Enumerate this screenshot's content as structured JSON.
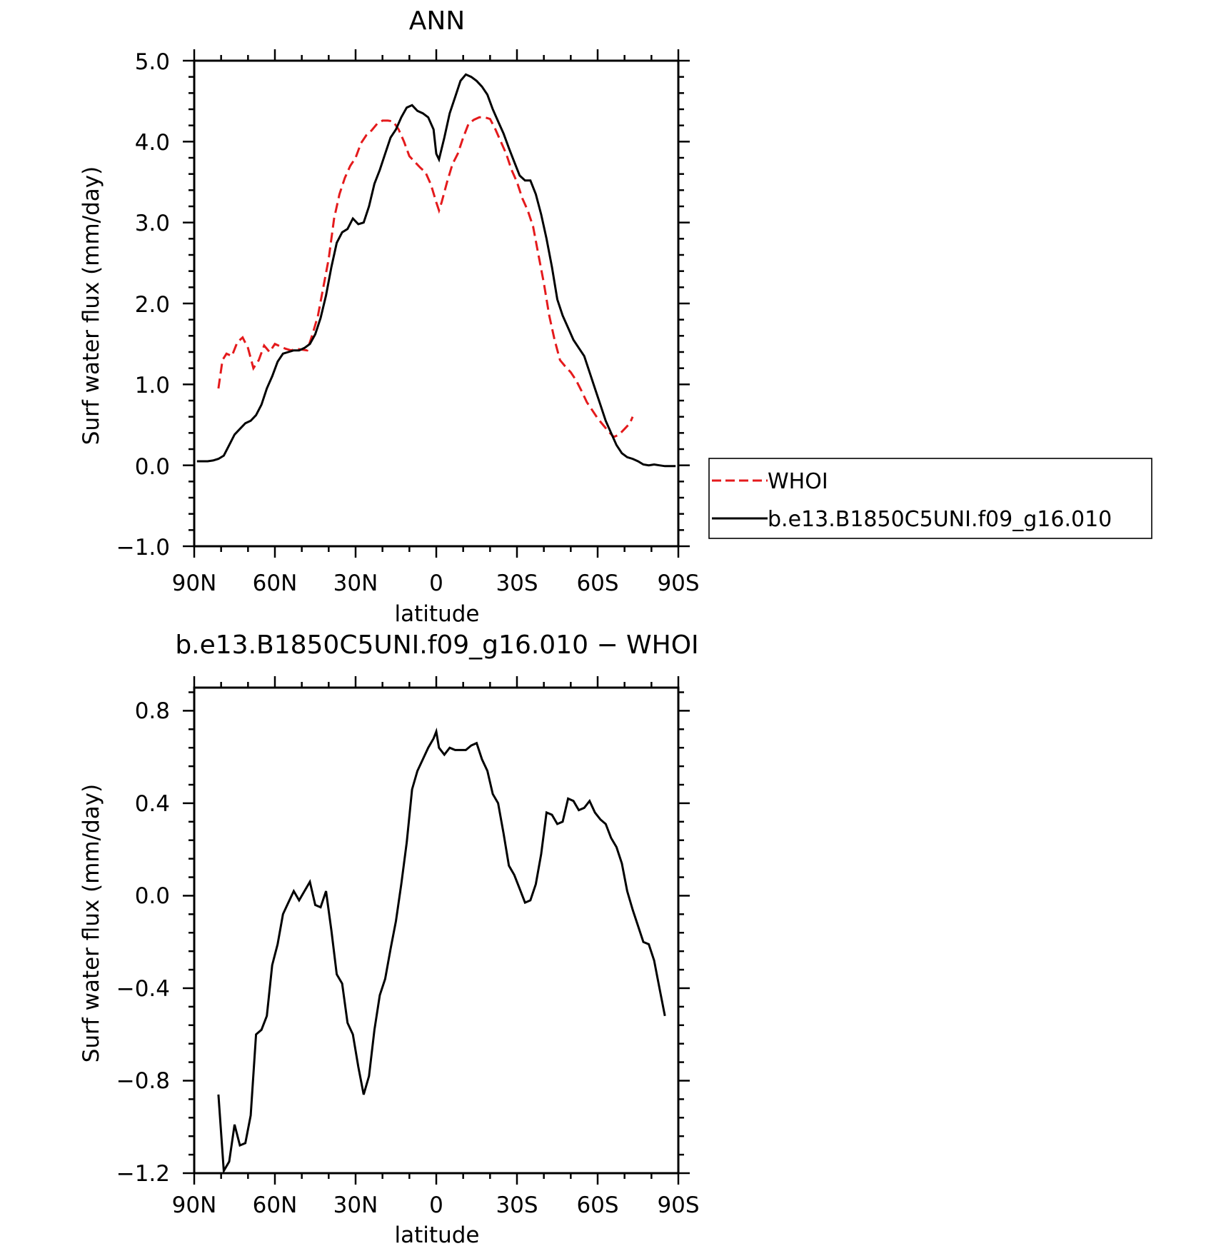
{
  "chart_data": [
    {
      "type": "line",
      "title": "ANN",
      "xlabel": "latitude",
      "ylabel": "Surf water flux (mm/day)",
      "xlim": [
        90,
        -90
      ],
      "ylim": [
        -1.0,
        5.0
      ],
      "x_ticks": [
        90,
        60,
        30,
        0,
        -30,
        -60,
        -90
      ],
      "x_tick_labels": [
        "90N",
        "60N",
        "30N",
        "0",
        "30S",
        "60S",
        "90S"
      ],
      "y_ticks": [
        -1.0,
        0.0,
        1.0,
        2.0,
        3.0,
        4.0,
        5.0
      ],
      "y_tick_labels": [
        "−1.0",
        "0.0",
        "1.0",
        "2.0",
        "3.0",
        "4.0",
        "5.0"
      ],
      "grid": false,
      "legend_position": "right",
      "series": [
        {
          "name": "WHOI",
          "color": "#e41a1c",
          "style": "dashed",
          "points": [
            [
              81,
              0.95
            ],
            [
              79.5,
              1.3
            ],
            [
              78,
              1.38
            ],
            [
              76,
              1.35
            ],
            [
              74,
              1.52
            ],
            [
              72,
              1.58
            ],
            [
              70,
              1.45
            ],
            [
              68,
              1.2
            ],
            [
              66,
              1.3
            ],
            [
              64,
              1.48
            ],
            [
              62,
              1.4
            ],
            [
              60,
              1.5
            ],
            [
              58,
              1.47
            ],
            [
              56,
              1.44
            ],
            [
              54,
              1.42
            ],
            [
              52,
              1.44
            ],
            [
              50,
              1.43
            ],
            [
              48,
              1.42
            ],
            [
              46,
              1.62
            ],
            [
              44,
              1.85
            ],
            [
              42,
              2.2
            ],
            [
              40,
              2.55
            ],
            [
              38,
              3.05
            ],
            [
              36,
              3.35
            ],
            [
              34,
              3.55
            ],
            [
              32,
              3.7
            ],
            [
              30,
              3.8
            ],
            [
              28,
              3.98
            ],
            [
              26,
              4.08
            ],
            [
              24,
              4.14
            ],
            [
              22,
              4.22
            ],
            [
              20,
              4.26
            ],
            [
              18,
              4.26
            ],
            [
              16,
              4.25
            ],
            [
              14,
              4.15
            ],
            [
              12,
              4.0
            ],
            [
              10,
              3.82
            ],
            [
              8,
              3.75
            ],
            [
              6,
              3.68
            ],
            [
              4,
              3.62
            ],
            [
              2,
              3.47
            ],
            [
              0,
              3.25
            ],
            [
              -1,
              3.15
            ],
            [
              -2,
              3.25
            ],
            [
              -4,
              3.5
            ],
            [
              -6,
              3.72
            ],
            [
              -8,
              3.85
            ],
            [
              -10,
              4.05
            ],
            [
              -12,
              4.22
            ],
            [
              -14,
              4.27
            ],
            [
              -16,
              4.3
            ],
            [
              -18,
              4.3
            ],
            [
              -20,
              4.28
            ],
            [
              -22,
              4.15
            ],
            [
              -24,
              4.0
            ],
            [
              -26,
              3.85
            ],
            [
              -28,
              3.65
            ],
            [
              -30,
              3.5
            ],
            [
              -32,
              3.3
            ],
            [
              -34,
              3.15
            ],
            [
              -36,
              2.95
            ],
            [
              -38,
              2.6
            ],
            [
              -40,
              2.25
            ],
            [
              -42,
              1.85
            ],
            [
              -44,
              1.55
            ],
            [
              -46,
              1.3
            ],
            [
              -48,
              1.22
            ],
            [
              -50,
              1.15
            ],
            [
              -52,
              1.05
            ],
            [
              -54,
              0.92
            ],
            [
              -56,
              0.78
            ],
            [
              -58,
              0.68
            ],
            [
              -60,
              0.58
            ],
            [
              -62,
              0.5
            ],
            [
              -64,
              0.42
            ],
            [
              -66,
              0.35
            ],
            [
              -68,
              0.38
            ],
            [
              -70,
              0.45
            ],
            [
              -72,
              0.52
            ],
            [
              -73,
              0.6
            ]
          ]
        },
        {
          "name": "b.e13.B1850C5UNI.f09_g16.010",
          "color": "#000000",
          "style": "solid",
          "points": [
            [
              89,
              0.05
            ],
            [
              87,
              0.05
            ],
            [
              85,
              0.05
            ],
            [
              83,
              0.06
            ],
            [
              81,
              0.08
            ],
            [
              79,
              0.12
            ],
            [
              77,
              0.25
            ],
            [
              75,
              0.38
            ],
            [
              73,
              0.45
            ],
            [
              71,
              0.52
            ],
            [
              69,
              0.55
            ],
            [
              67,
              0.62
            ],
            [
              65,
              0.75
            ],
            [
              63,
              0.95
            ],
            [
              61,
              1.1
            ],
            [
              59,
              1.28
            ],
            [
              57,
              1.38
            ],
            [
              55,
              1.4
            ],
            [
              53,
              1.42
            ],
            [
              51,
              1.42
            ],
            [
              49,
              1.45
            ],
            [
              47,
              1.5
            ],
            [
              45,
              1.62
            ],
            [
              43,
              1.82
            ],
            [
              41,
              2.1
            ],
            [
              39,
              2.45
            ],
            [
              37,
              2.75
            ],
            [
              35,
              2.88
            ],
            [
              33,
              2.92
            ],
            [
              31,
              3.05
            ],
            [
              29,
              2.98
            ],
            [
              27,
              3.0
            ],
            [
              25,
              3.2
            ],
            [
              23,
              3.48
            ],
            [
              21,
              3.65
            ],
            [
              19,
              3.85
            ],
            [
              17,
              4.05
            ],
            [
              15,
              4.15
            ],
            [
              13,
              4.3
            ],
            [
              11,
              4.42
            ],
            [
              9,
              4.45
            ],
            [
              7,
              4.38
            ],
            [
              5,
              4.35
            ],
            [
              3,
              4.3
            ],
            [
              1,
              4.15
            ],
            [
              0,
              3.85
            ],
            [
              -1,
              3.78
            ],
            [
              -3,
              4.05
            ],
            [
              -5,
              4.35
            ],
            [
              -7,
              4.55
            ],
            [
              -9,
              4.75
            ],
            [
              -11,
              4.83
            ],
            [
              -13,
              4.8
            ],
            [
              -15,
              4.75
            ],
            [
              -17,
              4.68
            ],
            [
              -19,
              4.58
            ],
            [
              -21,
              4.4
            ],
            [
              -23,
              4.25
            ],
            [
              -25,
              4.1
            ],
            [
              -27,
              3.92
            ],
            [
              -29,
              3.75
            ],
            [
              -31,
              3.58
            ],
            [
              -33,
              3.52
            ],
            [
              -35,
              3.52
            ],
            [
              -37,
              3.35
            ],
            [
              -39,
              3.1
            ],
            [
              -41,
              2.8
            ],
            [
              -43,
              2.45
            ],
            [
              -45,
              2.05
            ],
            [
              -47,
              1.85
            ],
            [
              -49,
              1.7
            ],
            [
              -51,
              1.55
            ],
            [
              -53,
              1.45
            ],
            [
              -55,
              1.35
            ],
            [
              -57,
              1.15
            ],
            [
              -59,
              0.95
            ],
            [
              -61,
              0.75
            ],
            [
              -63,
              0.55
            ],
            [
              -65,
              0.4
            ],
            [
              -67,
              0.25
            ],
            [
              -69,
              0.15
            ],
            [
              -71,
              0.1
            ],
            [
              -73,
              0.08
            ],
            [
              -75,
              0.05
            ],
            [
              -77,
              0.01
            ],
            [
              -79,
              0.0
            ],
            [
              -81,
              0.01
            ],
            [
              -83,
              0.0
            ],
            [
              -85,
              -0.01
            ],
            [
              -87,
              -0.01
            ],
            [
              -89,
              -0.01
            ]
          ]
        }
      ]
    },
    {
      "type": "line",
      "title": "b.e13.B1850C5UNI.f09_g16.010 − WHOI",
      "xlabel": "latitude",
      "ylabel": "Surf water flux (mm/day)",
      "xlim": [
        90,
        -90
      ],
      "ylim": [
        -1.2,
        0.9
      ],
      "x_ticks": [
        90,
        60,
        30,
        0,
        -30,
        -60,
        -90
      ],
      "x_tick_labels": [
        "90N",
        "60N",
        "30N",
        "0",
        "30S",
        "60S",
        "90S"
      ],
      "y_ticks": [
        -1.2,
        -0.8,
        -0.4,
        0.0,
        0.4,
        0.8
      ],
      "y_tick_labels": [
        "−1.2",
        "−0.8",
        "−0.4",
        "0.0",
        "0.4",
        "0.8"
      ],
      "grid": false,
      "series": [
        {
          "color": "#000000",
          "style": "solid",
          "points": [
            [
              81,
              -0.86
            ],
            [
              79,
              -1.19
            ],
            [
              77,
              -1.15
            ],
            [
              75,
              -0.99
            ],
            [
              73,
              -1.08
            ],
            [
              71,
              -1.07
            ],
            [
              69,
              -0.95
            ],
            [
              67,
              -0.6
            ],
            [
              65,
              -0.58
            ],
            [
              63,
              -0.52
            ],
            [
              61,
              -0.3
            ],
            [
              59,
              -0.21
            ],
            [
              57,
              -0.08
            ],
            [
              55,
              -0.03
            ],
            [
              53,
              0.02
            ],
            [
              51,
              -0.02
            ],
            [
              49,
              0.02
            ],
            [
              47,
              0.06
            ],
            [
              45,
              -0.04
            ],
            [
              43,
              -0.05
            ],
            [
              41,
              0.02
            ],
            [
              39,
              -0.15
            ],
            [
              37,
              -0.34
            ],
            [
              35,
              -0.38
            ],
            [
              33,
              -0.55
            ],
            [
              31,
              -0.6
            ],
            [
              29,
              -0.74
            ],
            [
              27,
              -0.86
            ],
            [
              25,
              -0.78
            ],
            [
              23,
              -0.58
            ],
            [
              21,
              -0.43
            ],
            [
              19,
              -0.36
            ],
            [
              17,
              -0.23
            ],
            [
              15,
              -0.11
            ],
            [
              13,
              0.05
            ],
            [
              11,
              0.23
            ],
            [
              9,
              0.46
            ],
            [
              7,
              0.54
            ],
            [
              5,
              0.59
            ],
            [
              3,
              0.64
            ],
            [
              1,
              0.68
            ],
            [
              0,
              0.71
            ],
            [
              -1,
              0.64
            ],
            [
              -3,
              0.61
            ],
            [
              -5,
              0.64
            ],
            [
              -7,
              0.63
            ],
            [
              -9,
              0.63
            ],
            [
              -11,
              0.63
            ],
            [
              -13,
              0.65
            ],
            [
              -15,
              0.66
            ],
            [
              -17,
              0.59
            ],
            [
              -19,
              0.54
            ],
            [
              -21,
              0.44
            ],
            [
              -23,
              0.4
            ],
            [
              -25,
              0.27
            ],
            [
              -27,
              0.13
            ],
            [
              -29,
              0.09
            ],
            [
              -31,
              0.03
            ],
            [
              -33,
              -0.03
            ],
            [
              -35,
              -0.02
            ],
            [
              -37,
              0.05
            ],
            [
              -39,
              0.18
            ],
            [
              -41,
              0.36
            ],
            [
              -43,
              0.35
            ],
            [
              -45,
              0.31
            ],
            [
              -47,
              0.32
            ],
            [
              -49,
              0.42
            ],
            [
              -51,
              0.41
            ],
            [
              -53,
              0.37
            ],
            [
              -55,
              0.38
            ],
            [
              -57,
              0.41
            ],
            [
              -59,
              0.36
            ],
            [
              -61,
              0.33
            ],
            [
              -63,
              0.31
            ],
            [
              -65,
              0.25
            ],
            [
              -67,
              0.21
            ],
            [
              -69,
              0.14
            ],
            [
              -71,
              0.02
            ],
            [
              -73,
              -0.06
            ],
            [
              -75,
              -0.13
            ],
            [
              -77,
              -0.2
            ],
            [
              -79,
              -0.21
            ],
            [
              -81,
              -0.28
            ],
            [
              -83,
              -0.4
            ],
            [
              -85,
              -0.52
            ]
          ]
        }
      ]
    }
  ]
}
